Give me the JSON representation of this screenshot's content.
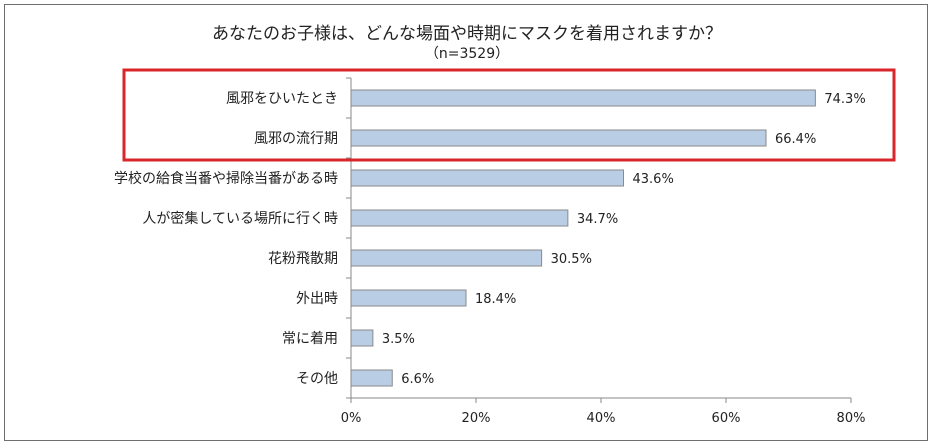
{
  "chart_data": {
    "type": "bar",
    "orientation": "horizontal",
    "title": "あなたのお子様は、どんな場面や時期にマスクを着用されますか？",
    "subtitle": "（n=3529）",
    "categories": [
      "風邪をひいたとき",
      "風邪の流行期",
      "学校の給食当番や掃除当番がある時",
      "人が密集している場所に行く時",
      "花粉飛散期",
      "外出時",
      "常に着用",
      "その他"
    ],
    "values": [
      74.3,
      66.4,
      43.6,
      34.7,
      30.5,
      18.4,
      3.5,
      6.6
    ],
    "value_labels": [
      "74.3%",
      "66.4%",
      "43.6%",
      "34.7%",
      "30.5%",
      "18.4%",
      "3.5%",
      "6.6%"
    ],
    "xlim": [
      0,
      80
    ],
    "x_ticks": [
      0,
      20,
      40,
      60,
      80
    ],
    "x_tick_labels": [
      "0%",
      "20%",
      "40%",
      "60%",
      "80%"
    ],
    "grid": false,
    "highlighted_categories": [
      "風邪をひいたとき",
      "風邪の流行期"
    ],
    "colors": {
      "bar_fill": "#b9cde5",
      "bar_stroke": "#8a8a8a",
      "axis": "#888888",
      "highlight_box": "#d9262a",
      "frame": "#6f6f6f"
    }
  }
}
